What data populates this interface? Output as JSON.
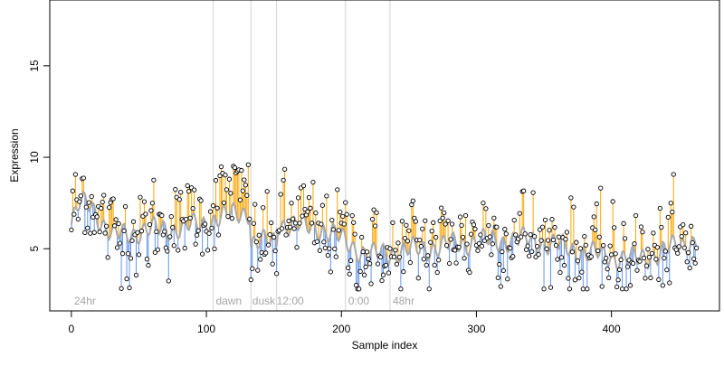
{
  "chart_data": {
    "type": "scatter",
    "xlabel": "Sample index",
    "ylabel": "Expression",
    "xlim": [
      -16,
      480
    ],
    "ylim": [
      1.6,
      18.6
    ],
    "x_ticks": [
      0,
      100,
      200,
      300,
      400
    ],
    "x_tick_labels": [
      "0",
      "100",
      "200",
      "300",
      "400"
    ],
    "y_ticks": [
      5,
      10,
      15
    ],
    "y_tick_labels": [
      "5",
      "10",
      "15"
    ],
    "grid": false,
    "n_samples": 464,
    "colors": {
      "above_fit": "#ffa500",
      "below_fit": "#6495ed",
      "fit_line": "#a9a9a9",
      "points": "#000000",
      "dividers": "#d3d3d3",
      "region_labels": "#a6a6a6"
    },
    "regions": [
      {
        "label": "24hr",
        "label_x": 2
      },
      {
        "label": "dawn",
        "start": 105,
        "label_x": 107
      },
      {
        "label": "dusk",
        "start": 133,
        "label_x": 134
      },
      {
        "label": "12:00",
        "start": 152,
        "label_x": 152
      },
      {
        "label": "0:00",
        "start": 203,
        "label_x": 205
      },
      {
        "label": "48hr",
        "start": 236,
        "label_x": 238
      }
    ],
    "fit_trend": [
      {
        "x": 0,
        "y": 6.3
      },
      {
        "x": 6,
        "y": 7.4
      },
      {
        "x": 14,
        "y": 7.5
      },
      {
        "x": 22,
        "y": 6.5
      },
      {
        "x": 30,
        "y": 5.7
      },
      {
        "x": 40,
        "y": 5.8
      },
      {
        "x": 55,
        "y": 6.0
      },
      {
        "x": 75,
        "y": 6.1
      },
      {
        "x": 95,
        "y": 6.3
      },
      {
        "x": 105,
        "y": 6.6
      },
      {
        "x": 132,
        "y": 7.1
      },
      {
        "x": 133,
        "y": 5.3
      },
      {
        "x": 152,
        "y": 5.4
      },
      {
        "x": 153,
        "y": 6.4
      },
      {
        "x": 185,
        "y": 6.1
      },
      {
        "x": 203,
        "y": 5.4
      },
      {
        "x": 220,
        "y": 4.6
      },
      {
        "x": 236,
        "y": 4.8
      },
      {
        "x": 260,
        "y": 5.0
      },
      {
        "x": 300,
        "y": 5.4
      },
      {
        "x": 340,
        "y": 5.5
      },
      {
        "x": 380,
        "y": 4.8
      },
      {
        "x": 420,
        "y": 4.4
      },
      {
        "x": 463,
        "y": 5.5
      }
    ],
    "observed_trend": [
      {
        "x": 0,
        "y": 6.4
      },
      {
        "x": 8,
        "y": 7.8
      },
      {
        "x": 14,
        "y": 7.6
      },
      {
        "x": 22,
        "y": 6.8
      },
      {
        "x": 30,
        "y": 6.0
      },
      {
        "x": 40,
        "y": 5.6
      },
      {
        "x": 55,
        "y": 6.0
      },
      {
        "x": 75,
        "y": 6.4
      },
      {
        "x": 95,
        "y": 6.8
      },
      {
        "x": 105,
        "y": 7.2
      },
      {
        "x": 120,
        "y": 8.0
      },
      {
        "x": 132,
        "y": 8.4
      },
      {
        "x": 133,
        "y": 5.0
      },
      {
        "x": 152,
        "y": 5.3
      },
      {
        "x": 153,
        "y": 6.8
      },
      {
        "x": 170,
        "y": 6.6
      },
      {
        "x": 185,
        "y": 6.0
      },
      {
        "x": 203,
        "y": 5.6
      },
      {
        "x": 220,
        "y": 4.6
      },
      {
        "x": 236,
        "y": 4.7
      },
      {
        "x": 260,
        "y": 5.2
      },
      {
        "x": 300,
        "y": 5.8
      },
      {
        "x": 340,
        "y": 5.6
      },
      {
        "x": 380,
        "y": 4.8
      },
      {
        "x": 420,
        "y": 4.5
      },
      {
        "x": 463,
        "y": 5.4
      }
    ],
    "noise_sd": 1.2,
    "fit_ripple": 0.45
  }
}
